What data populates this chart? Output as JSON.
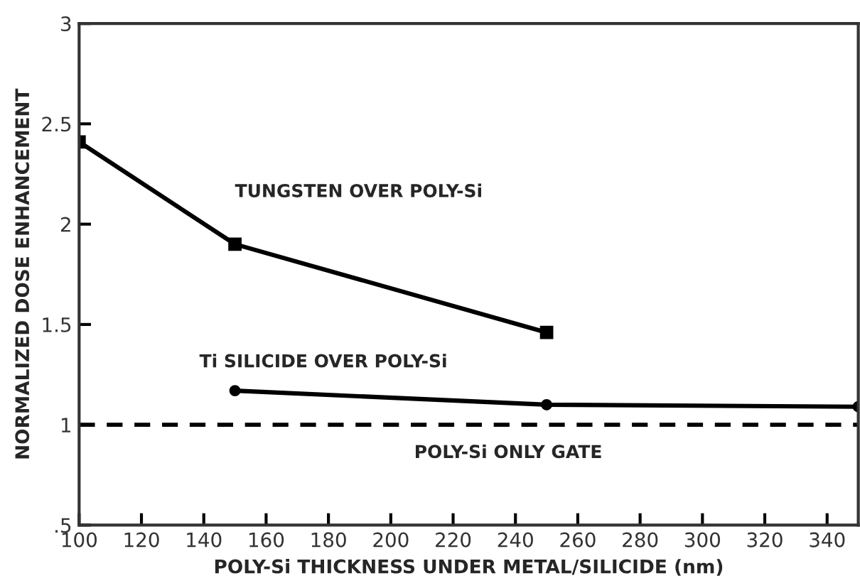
{
  "chart_data": {
    "type": "line",
    "xlabel": "POLY-Si THICKNESS UNDER METAL/SILICIDE (nm)",
    "ylabel": "NORMALIZED DOSE ENHANCEMENT",
    "series": [
      {
        "name": "TUNGSTEN OVER POLY-Si",
        "color": "#000000",
        "marker": "square",
        "x": [
          100,
          150,
          250
        ],
        "values": [
          2.41,
          1.9,
          1.46
        ]
      },
      {
        "name": "Ti SILICIDE OVER POLY-Si",
        "color": "#000000",
        "marker": "circle",
        "x": [
          150,
          250,
          350
        ],
        "values": [
          1.17,
          1.1,
          1.09
        ]
      }
    ],
    "ref_lines": [
      {
        "axis": "y",
        "value": 1,
        "label": "POLY-Si ONLY GATE",
        "color": "#000000",
        "line_style": "dashed"
      }
    ],
    "xlim": [
      100,
      350
    ],
    "xticks": [
      100,
      120,
      140,
      160,
      180,
      200,
      220,
      240,
      260,
      280,
      300,
      320,
      340
    ],
    "ylim": [
      0.5,
      3
    ],
    "yticks": [
      {
        "value": 0.5,
        "label": ".5"
      },
      1,
      1.5,
      2,
      2.5,
      3
    ],
    "grid": false,
    "legend": false,
    "line_style": "solid"
  }
}
